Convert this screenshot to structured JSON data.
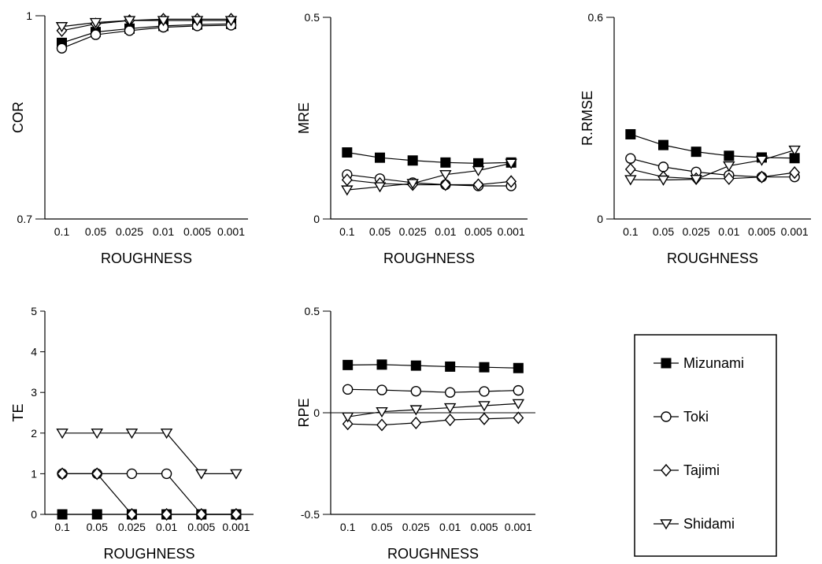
{
  "colors": {
    "ink": "#000000",
    "background": "#ffffff",
    "hollow_fill": "#ffffff"
  },
  "legend": {
    "placement": "bottom-right",
    "items": [
      {
        "label": "Mizunami",
        "marker": "filled-square-icon"
      },
      {
        "label": "Toki",
        "marker": "hollow-circle-icon"
      },
      {
        "label": "Tajimi",
        "marker": "hollow-diamond-icon"
      },
      {
        "label": "Shidami",
        "marker": "hollow-down-triangle-icon"
      }
    ]
  },
  "chart_data": [
    {
      "id": "cor",
      "type": "line",
      "xlabel": "ROUGHNESS",
      "ylabel": "COR",
      "categories": [
        "0.1",
        "0.05",
        "0.025",
        "0.01",
        "0.005",
        "0.001"
      ],
      "ylim": [
        0.7,
        1
      ],
      "yticks": [
        "0.7",
        "1"
      ],
      "zero_line": false,
      "series": [
        {
          "name": "Mizunami",
          "marker": "square",
          "values": [
            0.96,
            0.976,
            0.981,
            0.985,
            0.987,
            0.988
          ]
        },
        {
          "name": "Toki",
          "marker": "circle",
          "values": [
            0.952,
            0.972,
            0.978,
            0.983,
            0.985,
            0.986
          ]
        },
        {
          "name": "Tajimi",
          "marker": "diamond",
          "values": [
            0.978,
            0.988,
            0.993,
            0.995,
            0.995,
            0.995
          ]
        },
        {
          "name": "Shidami",
          "marker": "triangle",
          "values": [
            0.984,
            0.99,
            0.993,
            0.993,
            0.993,
            0.993
          ]
        }
      ]
    },
    {
      "id": "mre",
      "type": "line",
      "xlabel": "ROUGHNESS",
      "ylabel": "MRE",
      "categories": [
        "0.1",
        "0.05",
        "0.025",
        "0.01",
        "0.005",
        "0.001"
      ],
      "ylim": [
        0,
        0.5
      ],
      "yticks": [
        "0",
        "0.5"
      ],
      "zero_line": false,
      "series": [
        {
          "name": "Mizunami",
          "marker": "square",
          "values": [
            0.165,
            0.152,
            0.145,
            0.14,
            0.138,
            0.14
          ]
        },
        {
          "name": "Toki",
          "marker": "circle",
          "values": [
            0.11,
            0.1,
            0.09,
            0.085,
            0.082,
            0.082
          ]
        },
        {
          "name": "Tajimi",
          "marker": "diamond",
          "values": [
            0.097,
            0.088,
            0.085,
            0.085,
            0.085,
            0.093
          ]
        },
        {
          "name": "Shidami",
          "marker": "triangle",
          "values": [
            0.072,
            0.08,
            0.088,
            0.11,
            0.12,
            0.138
          ]
        }
      ]
    },
    {
      "id": "rrmse",
      "type": "line",
      "xlabel": "ROUGHNESS",
      "ylabel": "R.RMSE",
      "categories": [
        "0.1",
        "0.05",
        "0.025",
        "0.01",
        "0.005",
        "0.001"
      ],
      "ylim": [
        0,
        0.6
      ],
      "yticks": [
        "0",
        "0.6"
      ],
      "zero_line": false,
      "series": [
        {
          "name": "Mizunami",
          "marker": "square",
          "values": [
            0.252,
            0.22,
            0.2,
            0.188,
            0.183,
            0.181
          ]
        },
        {
          "name": "Toki",
          "marker": "circle",
          "values": [
            0.18,
            0.155,
            0.14,
            0.13,
            0.125,
            0.125
          ]
        },
        {
          "name": "Tajimi",
          "marker": "diamond",
          "values": [
            0.148,
            0.125,
            0.12,
            0.12,
            0.125,
            0.138
          ]
        },
        {
          "name": "Shidami",
          "marker": "triangle",
          "values": [
            0.117,
            0.116,
            0.118,
            0.158,
            0.175,
            0.205
          ]
        }
      ]
    },
    {
      "id": "te",
      "type": "line",
      "xlabel": "ROUGHNESS",
      "ylabel": "TE",
      "categories": [
        "0.1",
        "0.05",
        "0.025",
        "0.01",
        "0.005",
        "0.001"
      ],
      "ylim": [
        0,
        5
      ],
      "yticks": [
        "0",
        "1",
        "2",
        "3",
        "4",
        "5"
      ],
      "zero_line": false,
      "series": [
        {
          "name": "Mizunami",
          "marker": "square",
          "values": [
            0,
            0,
            0,
            0,
            0,
            0
          ]
        },
        {
          "name": "Toki",
          "marker": "circle",
          "values": [
            1,
            1,
            1,
            1,
            0,
            0
          ]
        },
        {
          "name": "Tajimi",
          "marker": "diamond",
          "values": [
            1,
            1,
            0,
            0,
            0,
            0
          ]
        },
        {
          "name": "Shidami",
          "marker": "triangle",
          "values": [
            2,
            2,
            2,
            2,
            1,
            1
          ]
        }
      ]
    },
    {
      "id": "rpe",
      "type": "line",
      "xlabel": "ROUGHNESS",
      "ylabel": "RPE",
      "categories": [
        "0.1",
        "0.05",
        "0.025",
        "0.01",
        "0.005",
        "0.001"
      ],
      "ylim": [
        -0.5,
        0.5
      ],
      "yticks": [
        "-0.5",
        "0",
        "0.5"
      ],
      "zero_line": true,
      "series": [
        {
          "name": "Mizunami",
          "marker": "square",
          "values": [
            0.235,
            0.237,
            0.232,
            0.227,
            0.224,
            0.22
          ]
        },
        {
          "name": "Toki",
          "marker": "circle",
          "values": [
            0.115,
            0.112,
            0.106,
            0.1,
            0.105,
            0.11
          ]
        },
        {
          "name": "Tajimi",
          "marker": "diamond",
          "values": [
            -0.055,
            -0.06,
            -0.05,
            -0.035,
            -0.03,
            -0.025
          ]
        },
        {
          "name": "Shidami",
          "marker": "triangle",
          "values": [
            -0.02,
            0.005,
            0.015,
            0.025,
            0.035,
            0.045
          ]
        }
      ]
    }
  ]
}
